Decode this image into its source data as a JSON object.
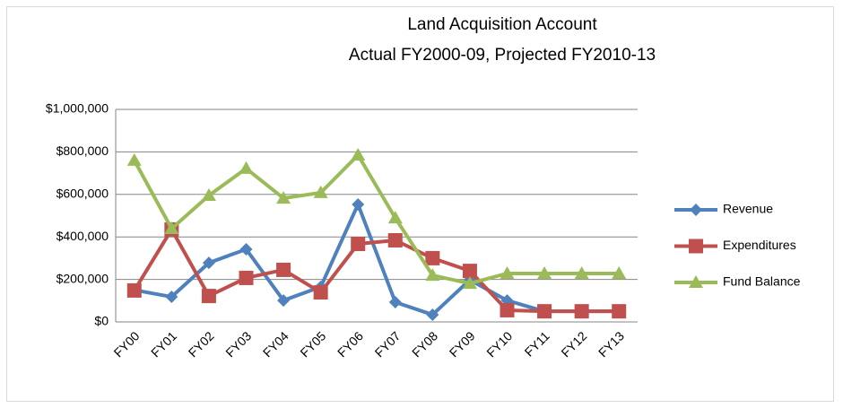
{
  "chart_data": {
    "type": "line",
    "title": "Land Acquisition Account",
    "subtitle": "Actual FY2000-09, Projected FY2010-13",
    "categories": [
      "FY00",
      "FY01",
      "FY02",
      "FY03",
      "FY04",
      "FY05",
      "FY06",
      "FY07",
      "FY08",
      "FY09",
      "FY10",
      "FY11",
      "FY12",
      "FY13"
    ],
    "series": [
      {
        "name": "Revenue",
        "color": "#4f81bd",
        "marker": "diamond",
        "values": [
          150000,
          118000,
          278000,
          342000,
          101000,
          165000,
          553000,
          93000,
          34000,
          198000,
          101000,
          50000,
          50000,
          50000
        ]
      },
      {
        "name": "Expenditures",
        "color": "#c0504d",
        "marker": "square",
        "values": [
          148000,
          435000,
          122000,
          207000,
          245000,
          139000,
          367000,
          384000,
          300000,
          240000,
          55000,
          50000,
          50000,
          50000
        ]
      },
      {
        "name": "Fund Balance",
        "color": "#9bbb59",
        "marker": "triangle",
        "values": [
          760000,
          439000,
          595000,
          722000,
          582000,
          608000,
          785000,
          489000,
          219000,
          181000,
          228000,
          228000,
          228000,
          228000
        ]
      }
    ],
    "ylim": [
      0,
      1000000
    ],
    "yticks": [
      {
        "value": 0,
        "label": "$0"
      },
      {
        "value": 200000,
        "label": "$200,000"
      },
      {
        "value": 400000,
        "label": "$400,000"
      },
      {
        "value": 600000,
        "label": "$600,000"
      },
      {
        "value": 800000,
        "label": "$800,000"
      },
      {
        "value": 1000000,
        "label": "$1,000,000"
      }
    ],
    "grid": true,
    "legend": "right"
  }
}
